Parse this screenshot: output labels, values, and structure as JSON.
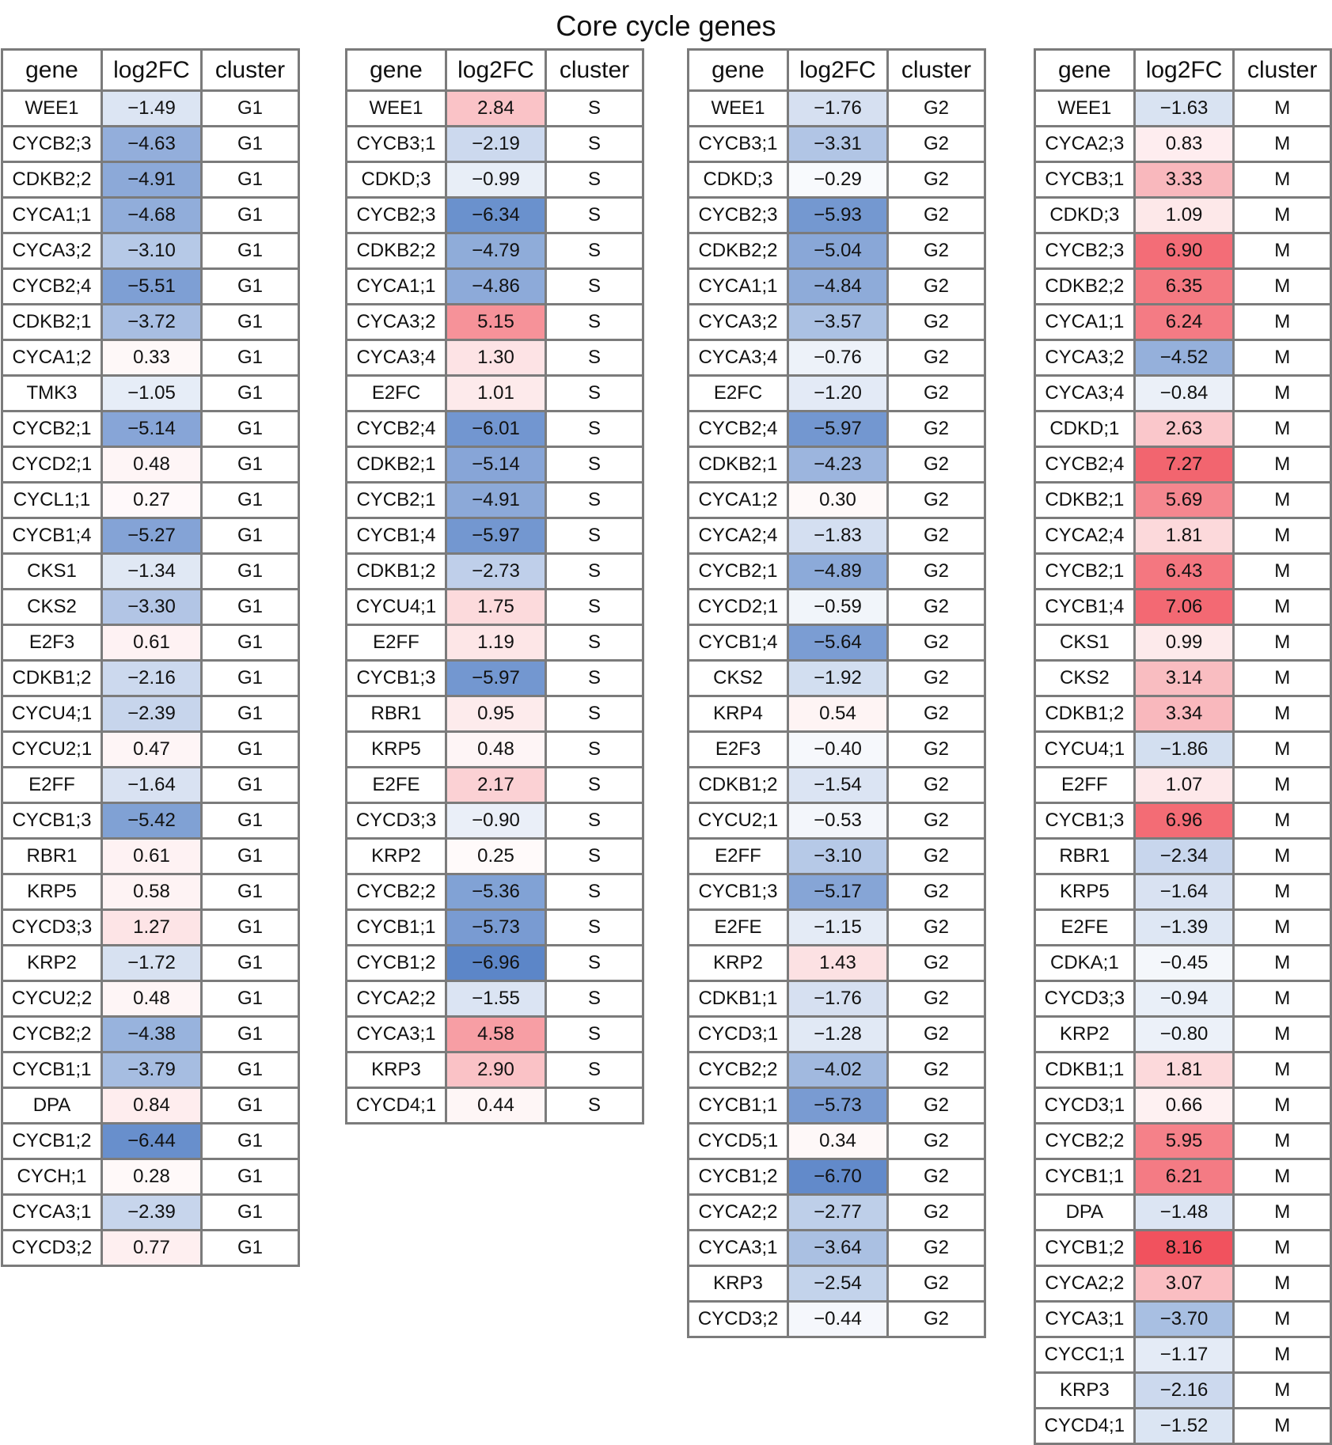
{
  "chart_data": {
    "type": "table",
    "title": "Core cycle genes",
    "color_scale": {
      "negative": "#5b85c8",
      "neutral": "#ffffff",
      "positive": "#f04b57",
      "min": -7,
      "max": 8.5
    },
    "tables": [
      {
        "cluster": "G1",
        "columns": [
          "gene",
          "log2FC",
          "cluster"
        ],
        "rows": [
          [
            "WEE1",
            -1.49,
            "G1"
          ],
          [
            "CYCB2;3",
            -4.63,
            "G1"
          ],
          [
            "CDKB2;2",
            -4.91,
            "G1"
          ],
          [
            "CYCA1;1",
            -4.68,
            "G1"
          ],
          [
            "CYCA3;2",
            -3.1,
            "G1"
          ],
          [
            "CYCB2;4",
            -5.51,
            "G1"
          ],
          [
            "CDKB2;1",
            -3.72,
            "G1"
          ],
          [
            "CYCA1;2",
            0.33,
            "G1"
          ],
          [
            "TMK3",
            -1.05,
            "G1"
          ],
          [
            "CYCB2;1",
            -5.14,
            "G1"
          ],
          [
            "CYCD2;1",
            0.48,
            "G1"
          ],
          [
            "CYCL1;1",
            0.27,
            "G1"
          ],
          [
            "CYCB1;4",
            -5.27,
            "G1"
          ],
          [
            "CKS1",
            -1.34,
            "G1"
          ],
          [
            "CKS2",
            -3.3,
            "G1"
          ],
          [
            "E2F3",
            0.61,
            "G1"
          ],
          [
            "CDKB1;2",
            -2.16,
            "G1"
          ],
          [
            "CYCU4;1",
            -2.39,
            "G1"
          ],
          [
            "CYCU2;1",
            0.47,
            "G1"
          ],
          [
            "E2FF",
            -1.64,
            "G1"
          ],
          [
            "CYCB1;3",
            -5.42,
            "G1"
          ],
          [
            "RBR1",
            0.61,
            "G1"
          ],
          [
            "KRP5",
            0.58,
            "G1"
          ],
          [
            "CYCD3;3",
            1.27,
            "G1"
          ],
          [
            "KRP2",
            -1.72,
            "G1"
          ],
          [
            "CYCU2;2",
            0.48,
            "G1"
          ],
          [
            "CYCB2;2",
            -4.38,
            "G1"
          ],
          [
            "CYCB1;1",
            -3.79,
            "G1"
          ],
          [
            "DPA",
            0.84,
            "G1"
          ],
          [
            "CYCB1;2",
            -6.44,
            "G1"
          ],
          [
            "CYCH;1",
            0.28,
            "G1"
          ],
          [
            "CYCA3;1",
            -2.39,
            "G1"
          ],
          [
            "CYCD3;2",
            0.77,
            "G1"
          ]
        ]
      },
      {
        "cluster": "S",
        "columns": [
          "gene",
          "log2FC",
          "cluster"
        ],
        "rows": [
          [
            "WEE1",
            2.84,
            "S"
          ],
          [
            "CYCB3;1",
            -2.19,
            "S"
          ],
          [
            "CDKD;3",
            -0.99,
            "S"
          ],
          [
            "CYCB2;3",
            -6.34,
            "S"
          ],
          [
            "CDKB2;2",
            -4.79,
            "S"
          ],
          [
            "CYCA1;1",
            -4.86,
            "S"
          ],
          [
            "CYCA3;2",
            5.15,
            "S"
          ],
          [
            "CYCA3;4",
            1.3,
            "S"
          ],
          [
            "E2FC",
            1.01,
            "S"
          ],
          [
            "CYCB2;4",
            -6.01,
            "S"
          ],
          [
            "CDKB2;1",
            -5.14,
            "S"
          ],
          [
            "CYCB2;1",
            -4.91,
            "S"
          ],
          [
            "CYCB1;4",
            -5.97,
            "S"
          ],
          [
            "CDKB1;2",
            -2.73,
            "S"
          ],
          [
            "CYCU4;1",
            1.75,
            "S"
          ],
          [
            "E2FF",
            1.19,
            "S"
          ],
          [
            "CYCB1;3",
            -5.97,
            "S"
          ],
          [
            "RBR1",
            0.95,
            "S"
          ],
          [
            "KRP5",
            0.48,
            "S"
          ],
          [
            "E2FE",
            2.17,
            "S"
          ],
          [
            "CYCD3;3",
            -0.9,
            "S"
          ],
          [
            "KRP2",
            0.25,
            "S"
          ],
          [
            "CYCB2;2",
            -5.36,
            "S"
          ],
          [
            "CYCB1;1",
            -5.73,
            "S"
          ],
          [
            "CYCB1;2",
            -6.96,
            "S"
          ],
          [
            "CYCA2;2",
            -1.55,
            "S"
          ],
          [
            "CYCA3;1",
            4.58,
            "S"
          ],
          [
            "KRP3",
            2.9,
            "S"
          ],
          [
            "CYCD4;1",
            0.44,
            "S"
          ]
        ]
      },
      {
        "cluster": "G2",
        "columns": [
          "gene",
          "log2FC",
          "cluster"
        ],
        "rows": [
          [
            "WEE1",
            -1.76,
            "G2"
          ],
          [
            "CYCB3;1",
            -3.31,
            "G2"
          ],
          [
            "CDKD;3",
            -0.29,
            "G2"
          ],
          [
            "CYCB2;3",
            -5.93,
            "G2"
          ],
          [
            "CDKB2;2",
            -5.04,
            "G2"
          ],
          [
            "CYCA1;1",
            -4.84,
            "G2"
          ],
          [
            "CYCA3;2",
            -3.57,
            "G2"
          ],
          [
            "CYCA3;4",
            -0.76,
            "G2"
          ],
          [
            "E2FC",
            -1.2,
            "G2"
          ],
          [
            "CYCB2;4",
            -5.97,
            "G2"
          ],
          [
            "CDKB2;1",
            -4.23,
            "G2"
          ],
          [
            "CYCA1;2",
            0.3,
            "G2"
          ],
          [
            "CYCA2;4",
            -1.83,
            "G2"
          ],
          [
            "CYCB2;1",
            -4.89,
            "G2"
          ],
          [
            "CYCD2;1",
            -0.59,
            "G2"
          ],
          [
            "CYCB1;4",
            -5.64,
            "G2"
          ],
          [
            "CKS2",
            -1.92,
            "G2"
          ],
          [
            "KRP4",
            0.54,
            "G2"
          ],
          [
            "E2F3",
            -0.4,
            "G2"
          ],
          [
            "CDKB1;2",
            -1.54,
            "G2"
          ],
          [
            "CYCU2;1",
            -0.53,
            "G2"
          ],
          [
            "E2FF",
            -3.1,
            "G2"
          ],
          [
            "CYCB1;3",
            -5.17,
            "G2"
          ],
          [
            "E2FE",
            -1.15,
            "G2"
          ],
          [
            "KRP2",
            1.43,
            "G2"
          ],
          [
            "CDKB1;1",
            -1.76,
            "G2"
          ],
          [
            "CYCD3;1",
            -1.28,
            "G2"
          ],
          [
            "CYCB2;2",
            -4.02,
            "G2"
          ],
          [
            "CYCB1;1",
            -5.73,
            "G2"
          ],
          [
            "CYCD5;1",
            0.34,
            "G2"
          ],
          [
            "CYCB1;2",
            -6.7,
            "G2"
          ],
          [
            "CYCA2;2",
            -2.77,
            "G2"
          ],
          [
            "CYCA3;1",
            -3.64,
            "G2"
          ],
          [
            "KRP3",
            -2.54,
            "G2"
          ],
          [
            "CYCD3;2",
            -0.44,
            "G2"
          ]
        ]
      },
      {
        "cluster": "M",
        "columns": [
          "gene",
          "log2FC",
          "cluster"
        ],
        "rows": [
          [
            "WEE1",
            -1.63,
            "M"
          ],
          [
            "CYCA2;3",
            0.83,
            "M"
          ],
          [
            "CYCB3;1",
            3.33,
            "M"
          ],
          [
            "CDKD;3",
            1.09,
            "M"
          ],
          [
            "CYCB2;3",
            6.9,
            "M"
          ],
          [
            "CDKB2;2",
            6.35,
            "M"
          ],
          [
            "CYCA1;1",
            6.24,
            "M"
          ],
          [
            "CYCA3;2",
            -4.52,
            "M"
          ],
          [
            "CYCA3;4",
            -0.84,
            "M"
          ],
          [
            "CDKD;1",
            2.63,
            "M"
          ],
          [
            "CYCB2;4",
            7.27,
            "M"
          ],
          [
            "CDKB2;1",
            5.69,
            "M"
          ],
          [
            "CYCA2;4",
            1.81,
            "M"
          ],
          [
            "CYCB2;1",
            6.43,
            "M"
          ],
          [
            "CYCB1;4",
            7.06,
            "M"
          ],
          [
            "CKS1",
            0.99,
            "M"
          ],
          [
            "CKS2",
            3.14,
            "M"
          ],
          [
            "CDKB1;2",
            3.34,
            "M"
          ],
          [
            "CYCU4;1",
            -1.86,
            "M"
          ],
          [
            "E2FF",
            1.07,
            "M"
          ],
          [
            "CYCB1;3",
            6.96,
            "M"
          ],
          [
            "RBR1",
            -2.34,
            "M"
          ],
          [
            "KRP5",
            -1.64,
            "M"
          ],
          [
            "E2FE",
            -1.39,
            "M"
          ],
          [
            "CDKA;1",
            -0.45,
            "M"
          ],
          [
            "CYCD3;3",
            -0.94,
            "M"
          ],
          [
            "KRP2",
            -0.8,
            "M"
          ],
          [
            "CDKB1;1",
            1.81,
            "M"
          ],
          [
            "CYCD3;1",
            0.66,
            "M"
          ],
          [
            "CYCB2;2",
            5.95,
            "M"
          ],
          [
            "CYCB1;1",
            6.21,
            "M"
          ],
          [
            "DPA",
            -1.48,
            "M"
          ],
          [
            "CYCB1;2",
            8.16,
            "M"
          ],
          [
            "CYCA2;2",
            3.07,
            "M"
          ],
          [
            "CYCA3;1",
            -3.7,
            "M"
          ],
          [
            "CYCC1;1",
            -1.17,
            "M"
          ],
          [
            "KRP3",
            -2.16,
            "M"
          ],
          [
            "CYCD4;1",
            -1.52,
            "M"
          ]
        ]
      }
    ]
  }
}
